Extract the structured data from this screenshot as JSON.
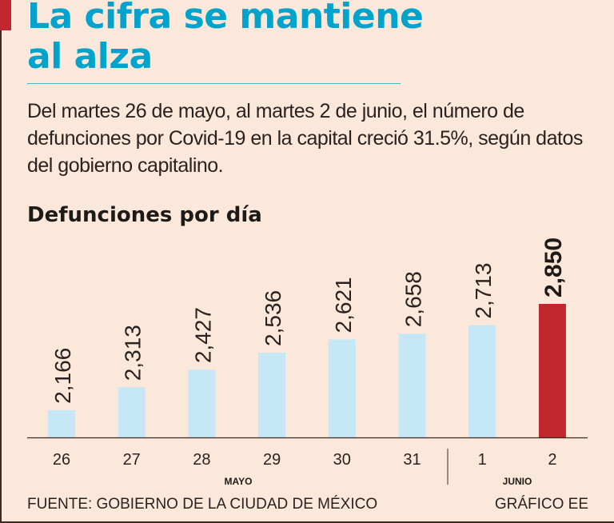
{
  "header": {
    "title_line1": "La cifra se mantiene",
    "title_line2": "al alza",
    "description": "Del martes 26 de mayo, al martes 2 de junio, el número de defunciones por Covid-19 en la capital creció 31.5%, según datos del gobierno capitalino."
  },
  "chart_data": {
    "type": "bar",
    "title": "Defunciones por día",
    "categories": [
      "26",
      "27",
      "28",
      "29",
      "30",
      "31",
      "1",
      "2"
    ],
    "values": [
      2166,
      2313,
      2427,
      2536,
      2621,
      2658,
      2713,
      2850
    ],
    "value_labels": [
      "2,166",
      "2,313",
      "2,427",
      "2,536",
      "2,621",
      "2,658",
      "2,713",
      "2,850"
    ],
    "month_labels": [
      "MAYO",
      "JUNIO"
    ],
    "highlight_index": 7,
    "colors": {
      "bar": "#c6e7f6",
      "highlight": "#c1272d"
    },
    "xlabel": "",
    "ylabel": "",
    "ylim": [
      1990,
      2850
    ]
  },
  "footer": {
    "source": "FUENTE: GOBIERNO DE LA CIUDAD DE MÉXICO",
    "credit": "GRÁFICO EE"
  }
}
